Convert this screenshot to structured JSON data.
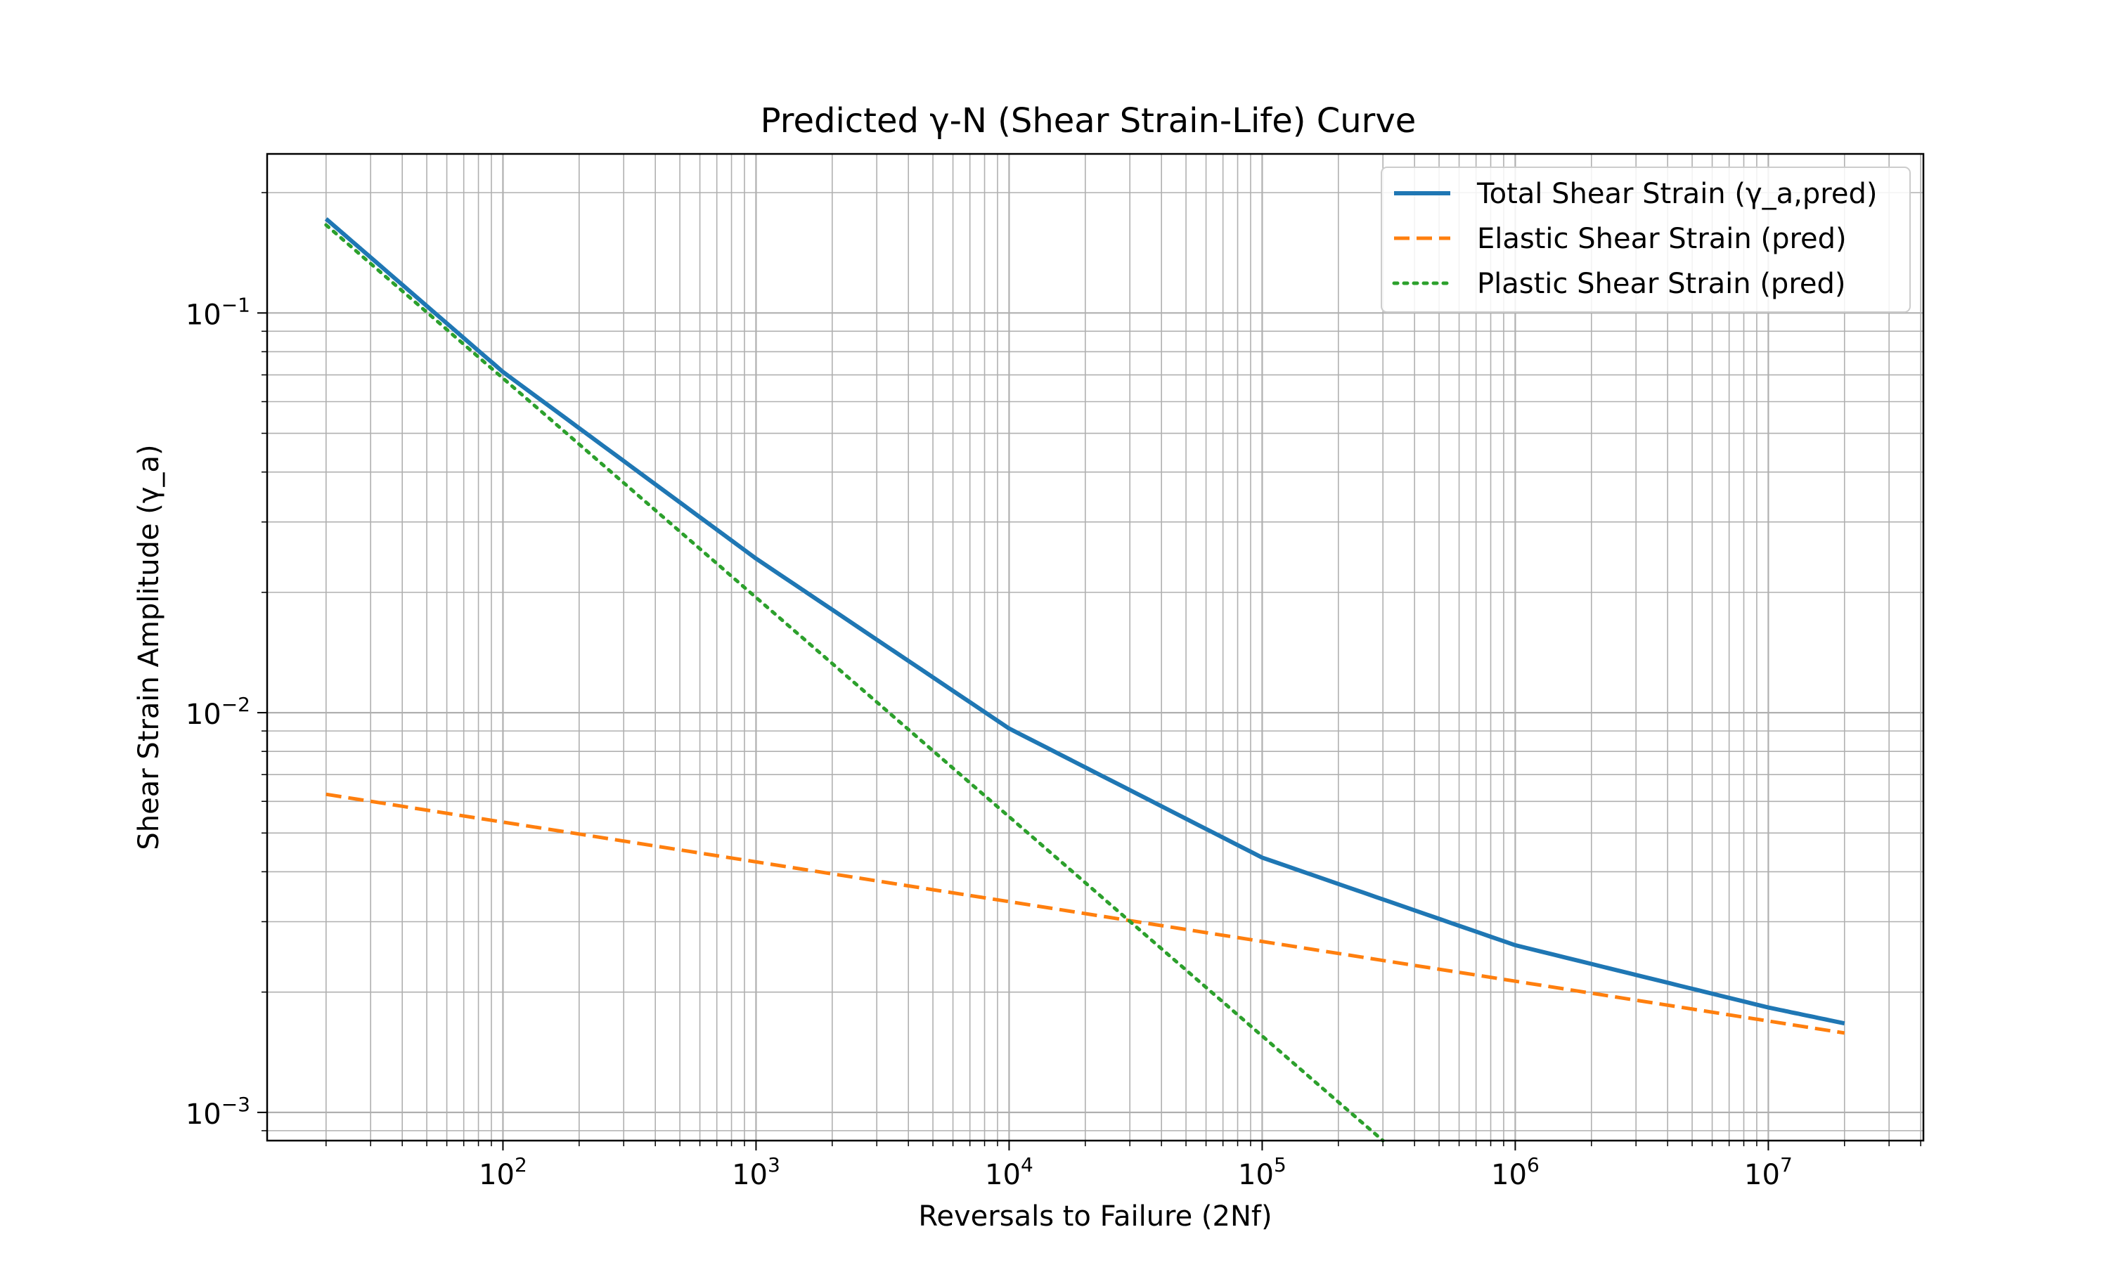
{
  "chart_data": {
    "type": "line",
    "title": "Predicted γ-N (Shear Strain-Life) Curve",
    "xlabel": "Reversals to Failure (2Nf)",
    "ylabel": "Shear Strain Amplitude (γ_a)",
    "xscale": "log",
    "yscale": "log",
    "xlim": [
      11.7,
      41000000
    ],
    "ylim": [
      0.00085,
      0.25
    ],
    "grid": "major-and-minor",
    "legend_position": "top-right",
    "x_ticks": [
      {
        "value": 100,
        "base": "10",
        "exp": "2"
      },
      {
        "value": 1000,
        "base": "10",
        "exp": "3"
      },
      {
        "value": 10000,
        "base": "10",
        "exp": "4"
      },
      {
        "value": 100000,
        "base": "10",
        "exp": "5"
      },
      {
        "value": 1000000,
        "base": "10",
        "exp": "6"
      },
      {
        "value": 10000000,
        "base": "10",
        "exp": "7"
      }
    ],
    "y_ticks": [
      {
        "value": 0.001,
        "base": "10",
        "exp": "−3"
      },
      {
        "value": 0.01,
        "base": "10",
        "exp": "−2"
      },
      {
        "value": 0.1,
        "base": "10",
        "exp": "−1"
      }
    ],
    "series": [
      {
        "name": "Total Shear Strain (γ_a,pred)",
        "color": "#1f77b4",
        "style": "solid",
        "x": [
          20,
          100,
          1000,
          10000,
          100000,
          1000000,
          10000000,
          20000000
        ],
        "y": [
          0.172,
          0.0712,
          0.0243,
          0.00913,
          0.00434,
          0.00262,
          0.00183,
          0.00167
        ]
      },
      {
        "name": "Elastic Shear Strain (pred)",
        "color": "#ff7f0e",
        "style": "dashed",
        "x": [
          20,
          20000000
        ],
        "y": [
          0.00625,
          0.00158
        ]
      },
      {
        "name": "Plastic Shear Strain (pred)",
        "color": "#2ca02c",
        "style": "dotted",
        "x": [
          20,
          300000
        ],
        "y": [
          0.166,
          0.00085
        ]
      }
    ]
  }
}
